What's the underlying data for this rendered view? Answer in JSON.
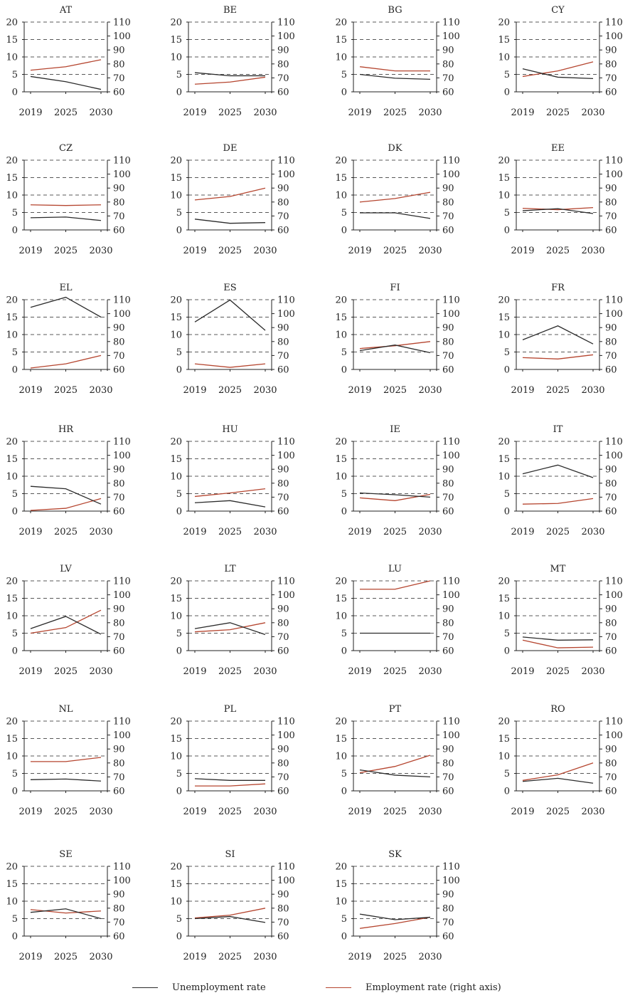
{
  "chart_data": {
    "type": "line",
    "layout": "small-multiples",
    "x": [
      "2019",
      "2025",
      "2030"
    ],
    "left_axis": {
      "range": [
        0,
        20
      ],
      "ticks": [
        "0",
        "5",
        "10",
        "15",
        "20"
      ]
    },
    "right_axis": {
      "range": [
        60,
        110
      ],
      "ticks": [
        "60",
        "70",
        "80",
        "90",
        "100",
        "110"
      ]
    },
    "series_meta": [
      {
        "key": "unemp",
        "name": "Unemployment rate",
        "axis": "left",
        "color": "#2b2b2b"
      },
      {
        "key": "emp",
        "name": "Employment rate (right axis)",
        "axis": "right",
        "color": "#b5452f"
      }
    ],
    "panels": [
      {
        "title": "AT",
        "unemp": [
          4.4,
          2.9,
          0.7
        ],
        "emp": [
          75.5,
          78.0,
          83.0
        ]
      },
      {
        "title": "BE",
        "unemp": [
          5.5,
          4.6,
          4.6
        ],
        "emp": [
          65.5,
          67.0,
          70.5
        ]
      },
      {
        "title": "BG",
        "unemp": [
          5.0,
          3.9,
          3.6
        ],
        "emp": [
          78.0,
          75.0,
          75.0
        ]
      },
      {
        "title": "CY",
        "unemp": [
          6.6,
          4.2,
          3.8
        ],
        "emp": [
          71.0,
          75.0,
          81.5
        ]
      },
      {
        "title": "CZ",
        "unemp": [
          3.5,
          3.7,
          2.7
        ],
        "emp": [
          78.0,
          77.5,
          78.0
        ]
      },
      {
        "title": "DE",
        "unemp": [
          3.1,
          1.9,
          2.1
        ],
        "emp": [
          81.5,
          84.0,
          90.0
        ]
      },
      {
        "title": "DK",
        "unemp": [
          4.9,
          4.9,
          3.3
        ],
        "emp": [
          80.0,
          82.5,
          87.0
        ]
      },
      {
        "title": "EE",
        "unemp": [
          5.5,
          6.1,
          4.7
        ],
        "emp": [
          75.5,
          74.5,
          76.0
        ]
      },
      {
        "title": "EL",
        "unemp": [
          17.8,
          20.7,
          15.0
        ],
        "emp": [
          61.0,
          64.0,
          70.0
        ]
      },
      {
        "title": "ES",
        "unemp": [
          13.6,
          19.9,
          11.2
        ],
        "emp": [
          64.0,
          61.5,
          64.0
        ]
      },
      {
        "title": "FI",
        "unemp": [
          5.4,
          7.0,
          4.8
        ],
        "emp": [
          75.0,
          77.0,
          80.0
        ]
      },
      {
        "title": "FR",
        "unemp": [
          8.5,
          12.5,
          7.3
        ],
        "emp": [
          68.5,
          67.5,
          70.5
        ]
      },
      {
        "title": "HR",
        "unemp": [
          7.1,
          6.4,
          2.0
        ],
        "emp": [
          60.5,
          62.0,
          69.0
        ]
      },
      {
        "title": "HU",
        "unemp": [
          2.4,
          3.0,
          1.2
        ],
        "emp": [
          70.5,
          73.0,
          76.0
        ]
      },
      {
        "title": "IE",
        "unemp": [
          5.2,
          4.7,
          4.0
        ],
        "emp": [
          69.5,
          67.5,
          72.0
        ]
      },
      {
        "title": "IT",
        "unemp": [
          10.7,
          13.2,
          9.6
        ],
        "emp": [
          65.0,
          65.5,
          69.0
        ]
      },
      {
        "title": "LV",
        "unemp": [
          6.3,
          9.8,
          4.7
        ],
        "emp": [
          72.5,
          76.5,
          89.0
        ]
      },
      {
        "title": "LT",
        "unemp": [
          6.3,
          8.0,
          4.6
        ],
        "emp": [
          73.5,
          75.0,
          80.0
        ]
      },
      {
        "title": "LU",
        "unemp": [
          5.0,
          5.0,
          5.0
        ],
        "emp": [
          104.0,
          104.0,
          110.0
        ]
      },
      {
        "title": "MT",
        "unemp": [
          3.9,
          3.0,
          3.1
        ],
        "emp": [
          67.5,
          62.0,
          62.5
        ]
      },
      {
        "title": "NL",
        "unemp": [
          3.2,
          3.4,
          2.8
        ],
        "emp": [
          81.0,
          81.0,
          84.0
        ]
      },
      {
        "title": "PL",
        "unemp": [
          3.5,
          3.0,
          3.0
        ],
        "emp": [
          63.5,
          63.5,
          65.0
        ]
      },
      {
        "title": "PT",
        "unemp": [
          6.0,
          4.5,
          4.0
        ],
        "emp": [
          73.0,
          77.5,
          85.5
        ]
      },
      {
        "title": "RO",
        "unemp": [
          2.7,
          3.6,
          2.2
        ],
        "emp": [
          67.5,
          71.5,
          80.0
        ]
      },
      {
        "title": "SE",
        "unemp": [
          6.8,
          7.8,
          5.0
        ],
        "emp": [
          79.0,
          76.5,
          78.0
        ]
      },
      {
        "title": "SI",
        "unemp": [
          5.0,
          5.6,
          3.9
        ],
        "emp": [
          73.0,
          75.0,
          80.0
        ]
      },
      {
        "title": "SK",
        "unemp": [
          6.3,
          4.7,
          5.4
        ],
        "emp": [
          65.5,
          69.0,
          73.5
        ]
      }
    ],
    "legend": [
      {
        "label": "Unemployment rate",
        "color": "#2b2b2b"
      },
      {
        "label": "Employment rate (right axis)",
        "color": "#b5452f"
      }
    ]
  }
}
